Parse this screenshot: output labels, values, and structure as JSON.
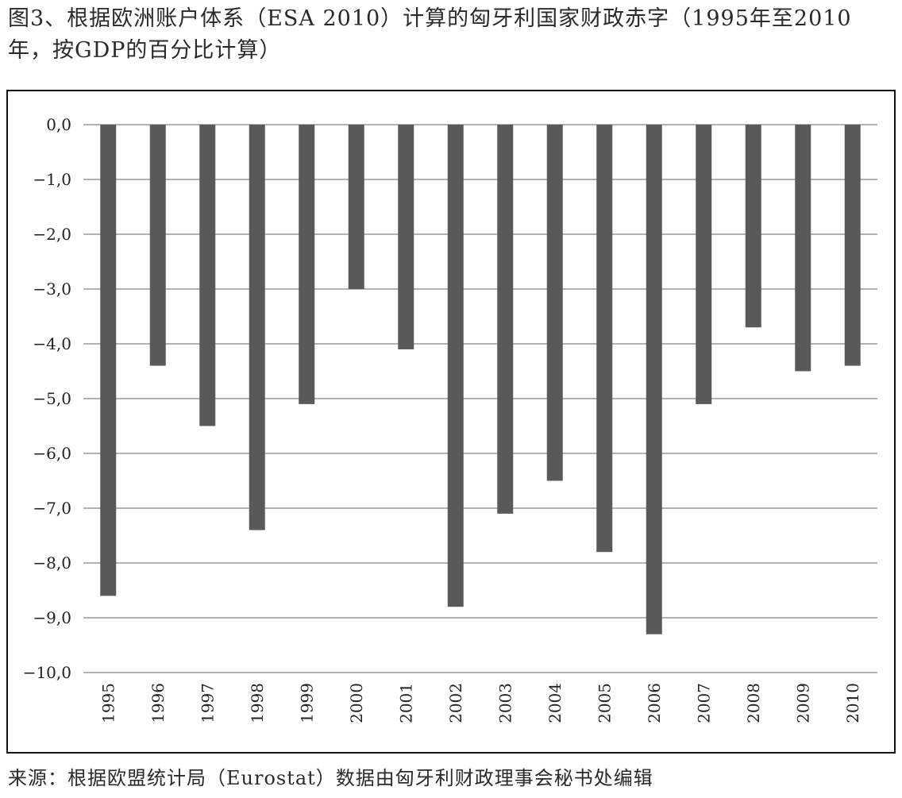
{
  "title": "图3、根据欧洲账户体系（ESA 2010）计算的匈牙利国家财政赤字（1995年至2010年，按GDP的百分比计算）",
  "source": "来源：根据欧盟统计局（Eurostat）数据由匈牙利财政理事会秘书处编辑",
  "chart_data": {
    "type": "bar",
    "title": "图3、根据欧洲账户体系（ESA 2010）计算的匈牙利国家财政赤字（1995年至2010年，按GDP的百分比计算）",
    "xlabel": "",
    "ylabel": "",
    "categories": [
      "1995",
      "1996",
      "1997",
      "1998",
      "1999",
      "2000",
      "2001",
      "2002",
      "2003",
      "2004",
      "2005",
      "2006",
      "2007",
      "2008",
      "2009",
      "2010"
    ],
    "values": [
      -8.6,
      -4.4,
      -5.5,
      -7.4,
      -5.1,
      -3.0,
      -4.1,
      -8.8,
      -7.1,
      -6.5,
      -7.8,
      -9.3,
      -5.1,
      -3.7,
      -4.5,
      -4.4
    ],
    "ylim": [
      -10,
      0
    ],
    "yticks": [
      "0,0",
      "−1,0",
      "−2,0",
      "−3,0",
      "−4,0",
      "−5,0",
      "−6,0",
      "−7,0",
      "−8,0",
      "−9,0",
      "−10,0"
    ],
    "ytick_values": [
      0,
      -1,
      -2,
      -3,
      -4,
      -5,
      -6,
      -7,
      -8,
      -9,
      -10
    ],
    "grid": true,
    "bar_color": "#595959",
    "grid_color": "#9a9a9a"
  }
}
